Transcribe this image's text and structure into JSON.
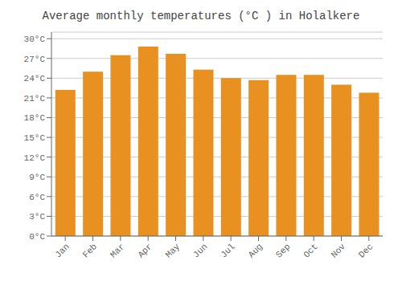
{
  "chart_data": {
    "type": "bar",
    "title": "Average monthly temperatures (°C ) in Holalkere",
    "categories": [
      "Jan",
      "Feb",
      "Mar",
      "Apr",
      "May",
      "Jun",
      "Jul",
      "Aug",
      "Sep",
      "Oct",
      "Nov",
      "Dec"
    ],
    "values": [
      22.2,
      25.0,
      27.5,
      28.8,
      27.7,
      25.3,
      24.0,
      23.7,
      24.5,
      24.5,
      23.0,
      21.8
    ],
    "color": "#E89020",
    "ylim": [
      0,
      31
    ],
    "yticks": [
      {
        "value": 0,
        "label": "0°C"
      },
      {
        "value": 3,
        "label": "3°C"
      },
      {
        "value": 6,
        "label": "6°C"
      },
      {
        "value": 9,
        "label": "9°C"
      },
      {
        "value": 12,
        "label": "12°C"
      },
      {
        "value": 15,
        "label": "15°C"
      },
      {
        "value": 18,
        "label": "18°C"
      },
      {
        "value": 21,
        "label": "21°C"
      },
      {
        "value": 24,
        "label": "24°C"
      },
      {
        "value": 27,
        "label": "27°C"
      },
      {
        "value": 30,
        "label": "30°C"
      }
    ],
    "grid": true
  }
}
